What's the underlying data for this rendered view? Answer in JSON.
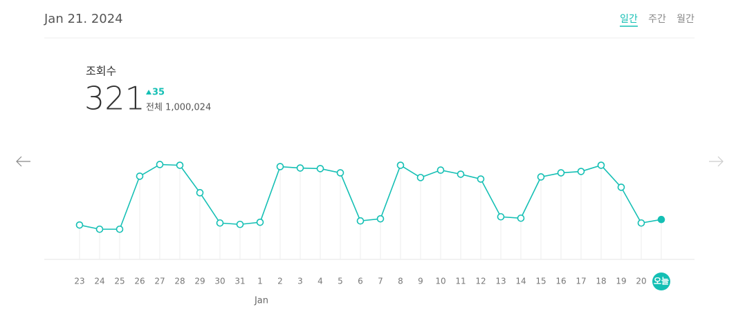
{
  "header": {
    "date": "Jan 21. 2024",
    "tabs": [
      "일간",
      "주간",
      "월간"
    ]
  },
  "stats": {
    "label": "조회수",
    "value": "321",
    "change": "35",
    "total": "전체 1,000,024"
  },
  "chart_data": {
    "type": "line",
    "color": "#14bfb4",
    "categories": [
      "23",
      "24",
      "25",
      "26",
      "27",
      "28",
      "29",
      "30",
      "31",
      "1",
      "2",
      "3",
      "4",
      "5",
      "6",
      "7",
      "8",
      "9",
      "10",
      "11",
      "12",
      "13",
      "14",
      "15",
      "16",
      "17",
      "18",
      "19",
      "20",
      "오늘"
    ],
    "values": [
      277,
      243,
      243,
      670,
      764,
      758,
      537,
      293,
      282,
      299,
      747,
      736,
      731,
      697,
      310,
      327,
      758,
      659,
      719,
      686,
      647,
      343,
      332,
      664,
      697,
      708,
      758,
      581,
      293,
      321
    ],
    "month_label": "Jan",
    "ylim": [
      0,
      1000
    ]
  }
}
